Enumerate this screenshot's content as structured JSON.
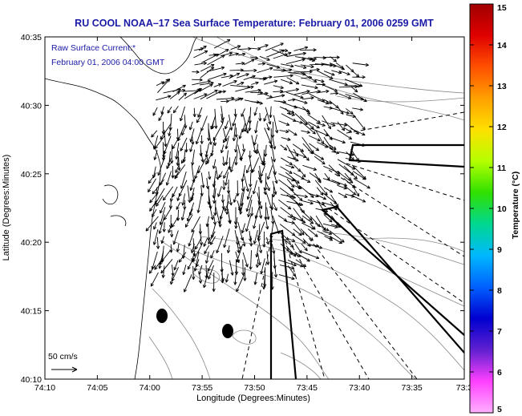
{
  "title": "RU COOL  NOAA–17  Sea Surface Temperature:  February 01, 2006 0259 GMT",
  "annotation": {
    "line1": "Raw Surface Current:*",
    "line2": "February 01, 2006 04:00 GMT"
  },
  "axes": {
    "xlabel": "Longitude (Degrees:Minutes)",
    "ylabel": "Latitude (Degrees:Minutes)",
    "x_ticks": [
      "74:10",
      "74:05",
      "74:00",
      "73:55",
      "73:50",
      "73:45",
      "73:40",
      "73:35",
      "73:3"
    ],
    "y_ticks": [
      "40:35",
      "40:30",
      "40:25",
      "40:20",
      "40:15",
      "40:10"
    ]
  },
  "scale_bar": {
    "label": "50 cm/s"
  },
  "colorbar": {
    "label": "Temperature (°C)",
    "ticks": [
      "15",
      "14",
      "13",
      "12",
      "11",
      "10",
      "9",
      "8",
      "7",
      "6",
      "5"
    ],
    "colors": [
      "#a00000",
      "#e00000",
      "#ff5000",
      "#ffa000",
      "#ffe000",
      "#b4ff00",
      "#30e000",
      "#00d890",
      "#00b8ff",
      "#0060ff",
      "#0000d0",
      "#6020d0",
      "#ff40ff",
      "#ffb0ff"
    ]
  },
  "icons": {
    "current_vectors": "arrow-field",
    "markers": "black-ellipse"
  }
}
